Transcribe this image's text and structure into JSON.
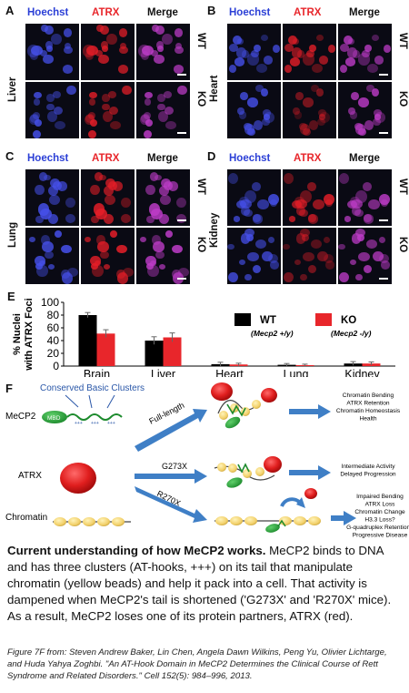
{
  "panels": {
    "A": {
      "label": "A",
      "tissue": "Liver"
    },
    "B": {
      "label": "B",
      "tissue": "Heart"
    },
    "C": {
      "label": "C",
      "tissue": "Lung"
    },
    "D": {
      "label": "D",
      "tissue": "Kidney"
    }
  },
  "channels": [
    "Hoechst",
    "ATRX",
    "Merge"
  ],
  "genotypes": {
    "wt": "WT",
    "ko": "KO"
  },
  "panel_e": {
    "label": "E"
  },
  "chart_data": {
    "type": "bar",
    "ylabel_line1": "% Nuclei",
    "ylabel_line2": "with ATRX Foci",
    "categories": [
      "Brain",
      "Liver",
      "Heart",
      "Lung",
      "Kidney"
    ],
    "ylim": [
      0,
      100
    ],
    "yticks": [
      "0",
      "20",
      "40",
      "60",
      "80",
      "100"
    ],
    "series": [
      {
        "name": "WT",
        "color": "#000000",
        "values": [
          80,
          40,
          3,
          2,
          4
        ],
        "errors": [
          4,
          6,
          3,
          2,
          3
        ]
      },
      {
        "name": "KO",
        "color": "#e8262b",
        "values": [
          51,
          45,
          2.5,
          1.5,
          4
        ],
        "errors": [
          6,
          7,
          2,
          1.5,
          2.5
        ]
      }
    ],
    "legend": {
      "wt_label": "WT",
      "wt_sub": "(Mecp2 +/y)",
      "ko_label": "KO",
      "ko_sub": "(Mecp2 -/y)",
      "position": "top-right"
    }
  },
  "panel_f": {
    "label": "F",
    "conserved": "Conserved Basic Clusters",
    "mecp2": "MeCP2",
    "mbd": "MBD",
    "plus": "+++",
    "atrx": "ATRX",
    "chromatin": "Chromatin",
    "arrow_full": "Full-length",
    "arrow_g273x": "G273X",
    "arrow_r270x": "R270X",
    "out_full": [
      "Chromatin Bending",
      "ATRX Retention",
      "Chromatin Homeostasis",
      "Health"
    ],
    "out_g273x": [
      "Intermediate Activity",
      "Delayed Progression"
    ],
    "out_r270x": [
      "Impaired Bending",
      "ATRX Loss",
      "Chromatin Change",
      "H3.3 Loss?",
      "G-quadruplex Retention?",
      "Progressive Disease"
    ]
  },
  "caption": {
    "bold": "Current understanding of how MeCP2 works.",
    "text": " MeCP2 binds to DNA and has three clusters (AT-hooks, +++) on its tail that manipulate chromatin (yellow beads) and help it pack into a cell. That activity is dampened when MeCP2's tail is shortened ('G273X' and 'R270X' mice). As a result, MeCP2 loses one of its protein partners, ATRX (red)."
  },
  "citation": "Figure 7F from: Steven Andrew Baker, Lin Chen, Angela Dawn Wilkins, Peng Yu, Olivier Lichtarge, and Huda Yahya Zoghbi. \"An AT-Hook Domain in MeCP2 Determines the Clinical Course of Rett Syndrome and Related Disorders.\" Cell 152(5): 984–996, 2013.",
  "colors": {
    "hoechst": "#2b3fd6",
    "atrx": "#e8262b",
    "merge": "#111111",
    "arrow": "#3f7fc6"
  }
}
